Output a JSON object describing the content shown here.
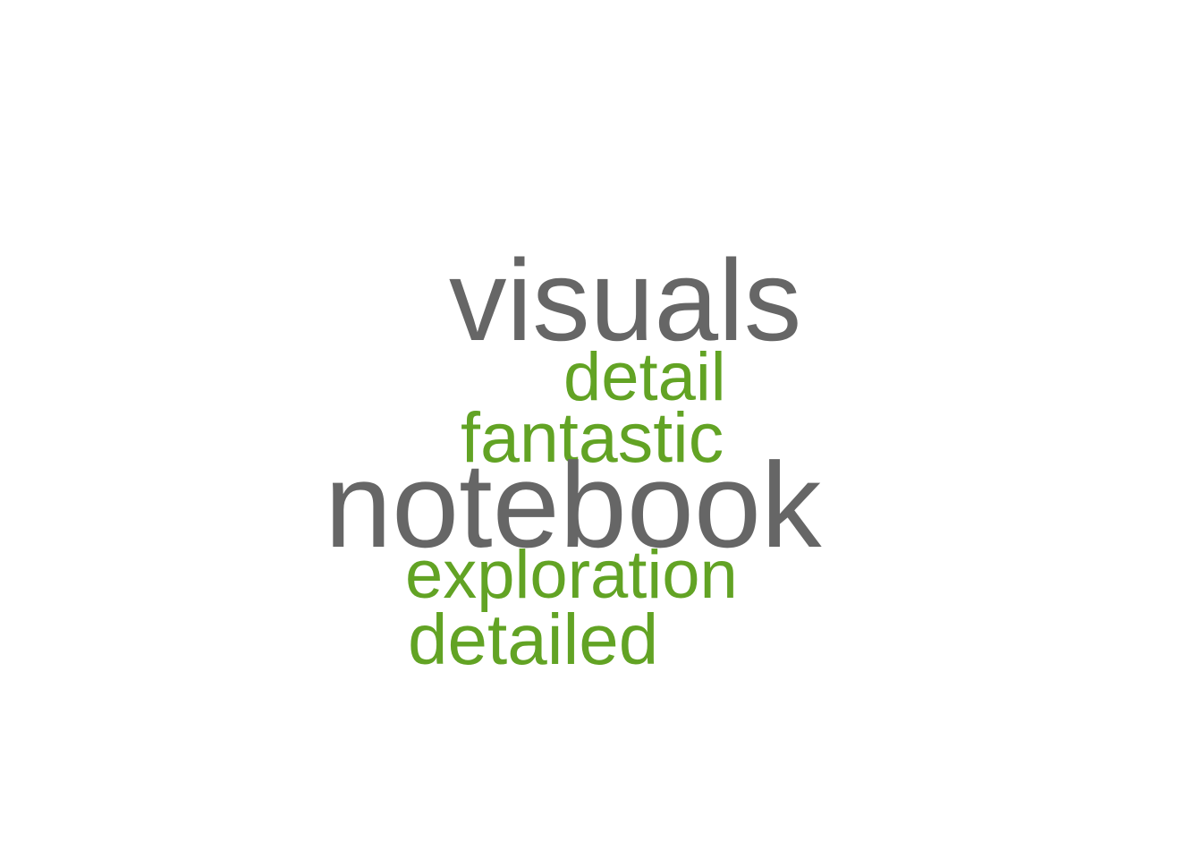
{
  "colors": {
    "background": "#ffffff",
    "primary_word": "#666666",
    "secondary_word": "#62a324"
  },
  "words": [
    {
      "text": "visuals",
      "tier": "primary"
    },
    {
      "text": "detail",
      "tier": "secondary"
    },
    {
      "text": "fantastic",
      "tier": "secondary"
    },
    {
      "text": "notebook",
      "tier": "primary"
    },
    {
      "text": "exploration",
      "tier": "secondary"
    },
    {
      "text": "detailed",
      "tier": "secondary"
    }
  ]
}
